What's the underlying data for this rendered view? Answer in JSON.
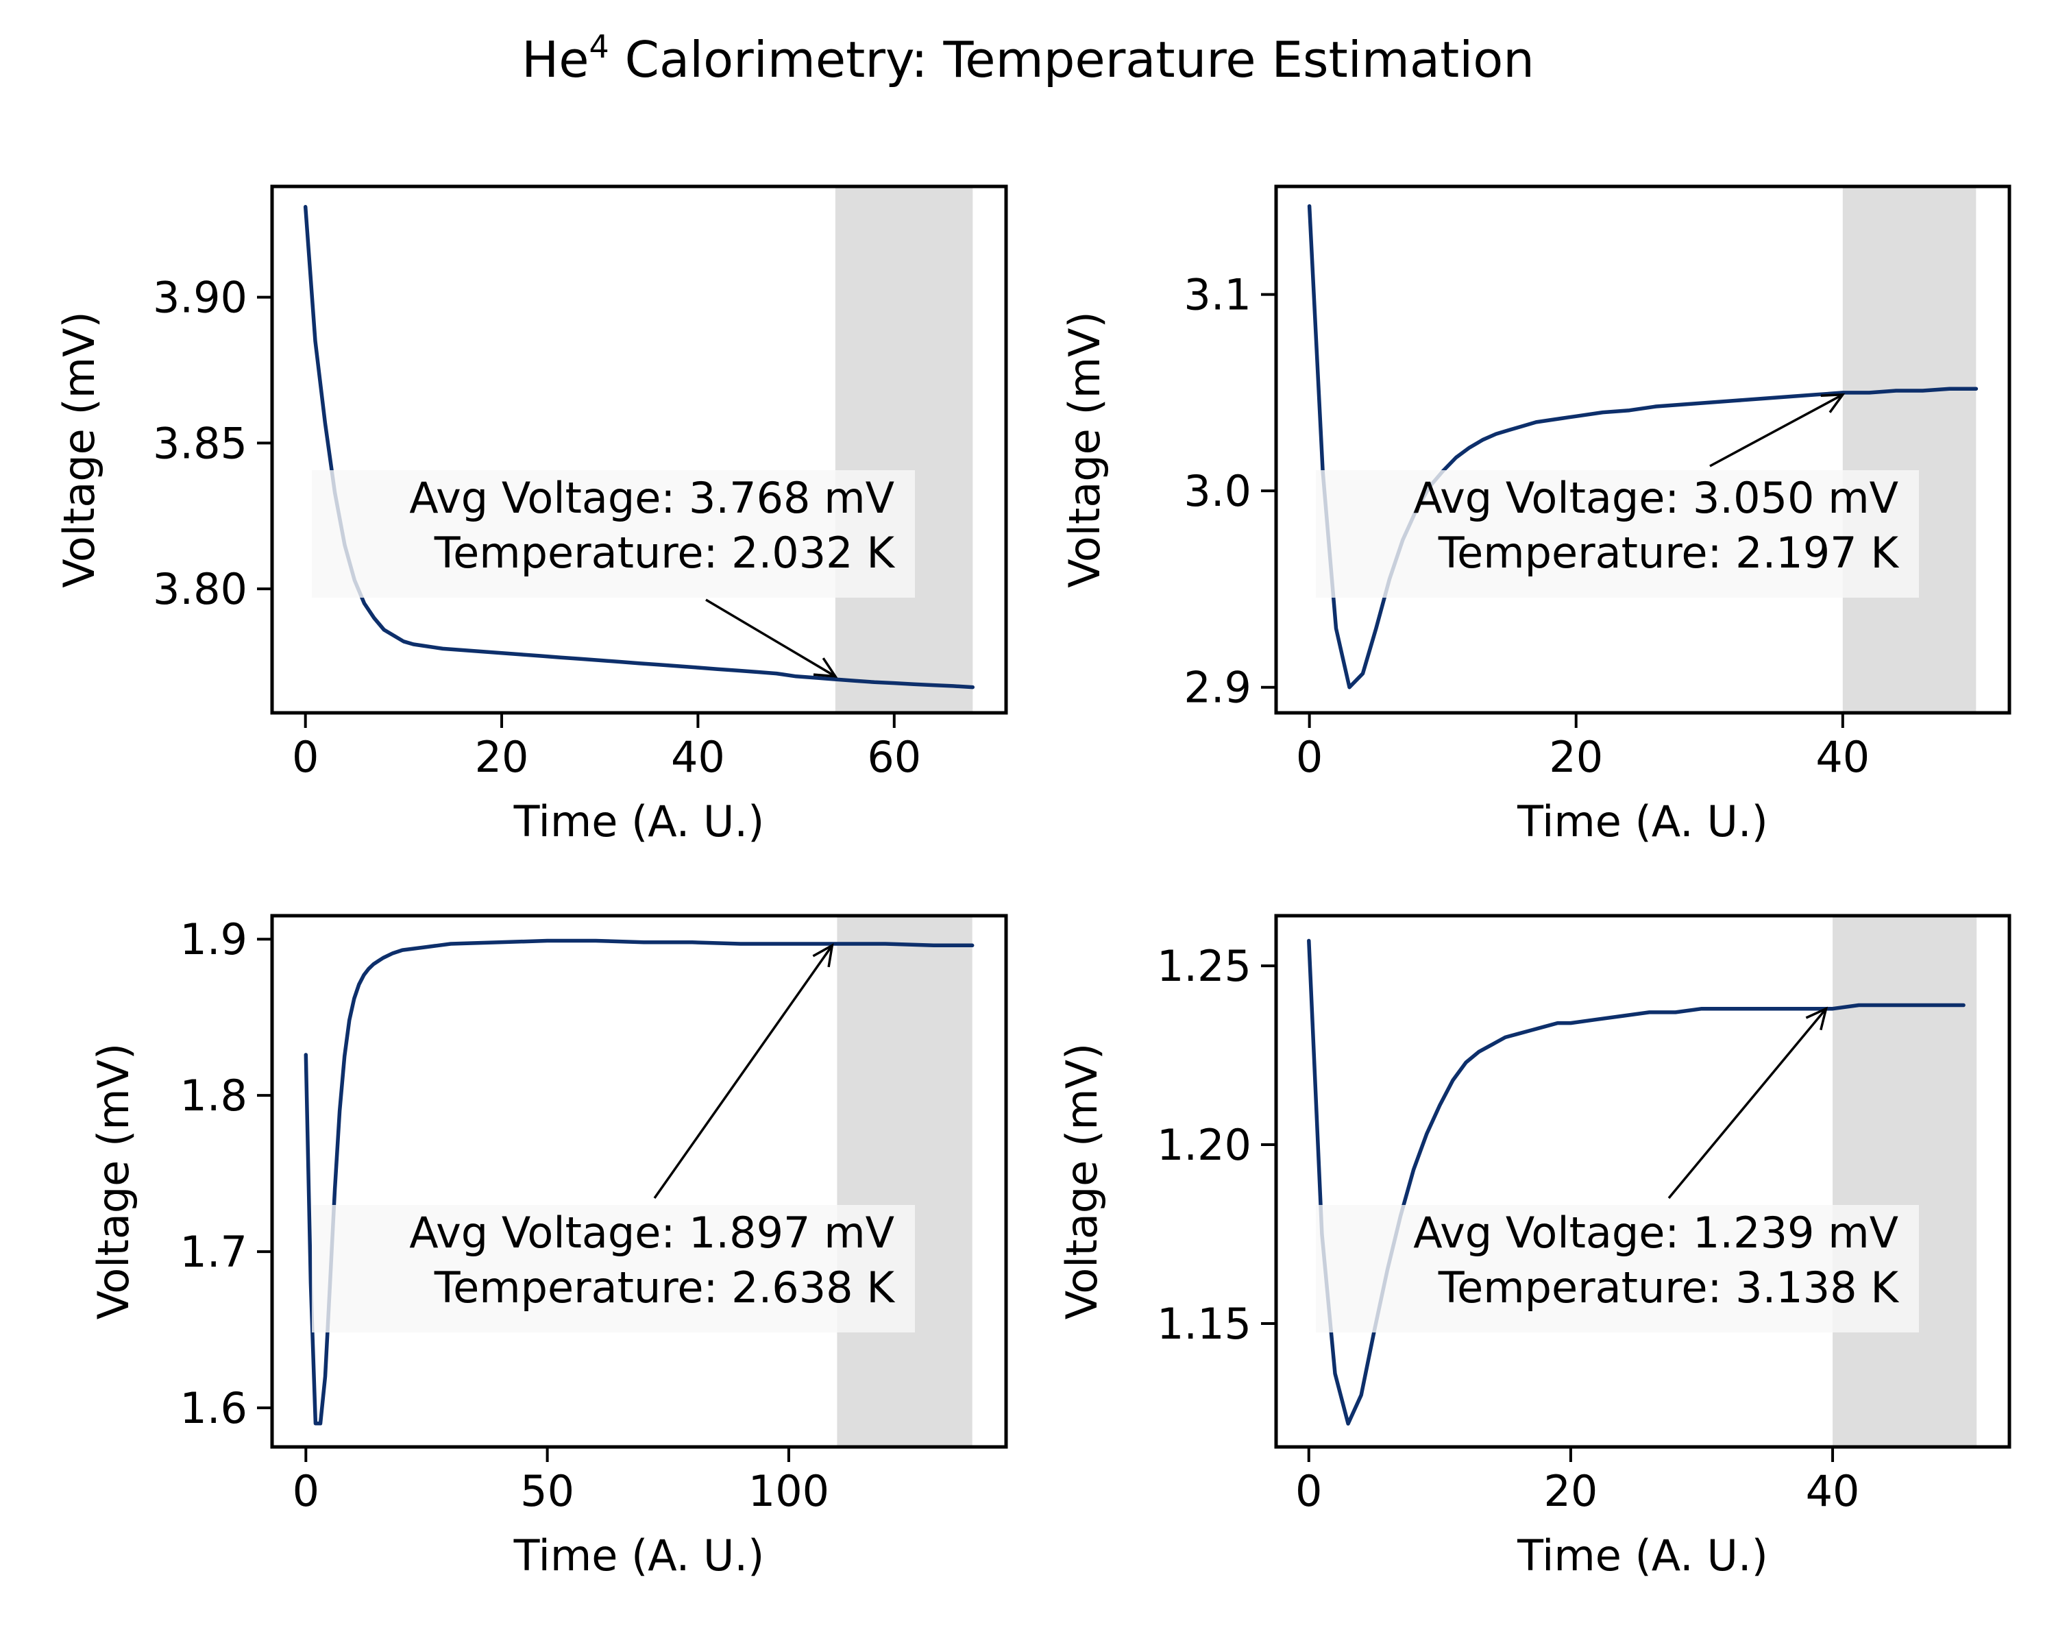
{
  "figure": {
    "title_main": "He",
    "title_sup": "4",
    "title_rest": " Calorimetry: Temperature Estimation"
  },
  "colors": {
    "line": "#0d2f6b",
    "shade": "#dedede",
    "annotation_box": "#f7f7f7"
  },
  "chart_data": [
    {
      "type": "line",
      "xlabel": "Time (A. U.)",
      "ylabel": "Voltage (mV)",
      "xlim": [
        -3.4,
        71.4
      ],
      "ylim": [
        3.7575,
        3.938
      ],
      "xticks": [
        0,
        20,
        40,
        60
      ],
      "yticks": [
        3.8,
        3.85,
        3.9
      ],
      "ytick_labels": [
        "3.80",
        "3.85",
        "3.90"
      ],
      "shaded_x": [
        54,
        68
      ],
      "x": [
        0,
        1,
        2,
        3,
        4,
        5,
        6,
        7,
        8,
        9,
        10,
        11,
        12,
        14,
        16,
        18,
        20,
        22,
        24,
        26,
        28,
        30,
        32,
        34,
        36,
        38,
        40,
        42,
        44,
        46,
        48,
        50,
        52,
        54,
        56,
        58,
        60,
        62,
        64,
        66,
        68
      ],
      "y": [
        3.931,
        3.885,
        3.857,
        3.833,
        3.815,
        3.803,
        3.795,
        3.79,
        3.786,
        3.784,
        3.782,
        3.781,
        3.7805,
        3.7795,
        3.779,
        3.7785,
        3.778,
        3.7775,
        3.777,
        3.7765,
        3.776,
        3.7755,
        3.775,
        3.7745,
        3.774,
        3.7735,
        3.773,
        3.7725,
        3.772,
        3.7715,
        3.771,
        3.77,
        3.7695,
        3.769,
        3.7685,
        3.768,
        3.7677,
        3.7673,
        3.767,
        3.7667,
        3.7663
      ],
      "annotation": {
        "line1": "Avg Voltage: 3.768 mV",
        "line2": "Temperature: 2.032 K",
        "point": [
          54,
          3.77
        ]
      }
    },
    {
      "type": "line",
      "xlabel": "Time (A. U.)",
      "ylabel": "Voltage (mV)",
      "xlim": [
        -2.5,
        52.5
      ],
      "ylim": [
        2.887,
        3.155
      ],
      "xticks": [
        0,
        20,
        40
      ],
      "yticks": [
        2.9,
        3.0,
        3.1
      ],
      "ytick_labels": [
        "2.9",
        "3.0",
        "3.1"
      ],
      "shaded_x": [
        40,
        50
      ],
      "x": [
        0,
        1,
        2,
        3,
        4,
        5,
        6,
        7,
        8,
        9,
        10,
        11,
        12,
        13,
        14,
        15,
        16,
        17,
        18,
        19,
        20,
        22,
        24,
        26,
        28,
        30,
        32,
        34,
        36,
        38,
        40,
        42,
        44,
        46,
        48,
        50
      ],
      "y": [
        3.145,
        3.01,
        2.93,
        2.9,
        2.907,
        2.93,
        2.955,
        2.975,
        2.99,
        3.002,
        3.01,
        3.017,
        3.022,
        3.026,
        3.029,
        3.031,
        3.033,
        3.035,
        3.036,
        3.037,
        3.038,
        3.04,
        3.041,
        3.043,
        3.044,
        3.045,
        3.046,
        3.047,
        3.048,
        3.049,
        3.05,
        3.05,
        3.051,
        3.051,
        3.052,
        3.052
      ],
      "annotation": {
        "line1": "Avg Voltage: 3.050 mV",
        "line2": "Temperature: 2.197 K",
        "point": [
          40,
          3.049
        ]
      }
    },
    {
      "type": "line",
      "xlabel": "Time (A. U.)",
      "ylabel": "Voltage (mV)",
      "xlim": [
        -7,
        145
      ],
      "ylim": [
        1.575,
        1.915
      ],
      "xticks": [
        0,
        50,
        100
      ],
      "yticks": [
        1.6,
        1.7,
        1.8,
        1.9
      ],
      "ytick_labels": [
        "1.6",
        "1.7",
        "1.8",
        "1.9"
      ],
      "shaded_x": [
        110,
        138
      ],
      "x": [
        0,
        1,
        2,
        3,
        4,
        5,
        6,
        7,
        8,
        9,
        10,
        11,
        12,
        13,
        14,
        15,
        16,
        18,
        20,
        25,
        30,
        40,
        50,
        60,
        70,
        80,
        90,
        100,
        110,
        120,
        130,
        138
      ],
      "y": [
        1.826,
        1.68,
        1.59,
        1.59,
        1.62,
        1.68,
        1.74,
        1.79,
        1.825,
        1.848,
        1.862,
        1.871,
        1.877,
        1.881,
        1.884,
        1.886,
        1.888,
        1.891,
        1.893,
        1.895,
        1.897,
        1.898,
        1.899,
        1.899,
        1.898,
        1.898,
        1.897,
        1.897,
        1.897,
        1.897,
        1.896,
        1.896
      ],
      "annotation": {
        "line1": "Avg Voltage: 1.897 mV",
        "line2": "Temperature: 2.638 K",
        "point": [
          109,
          1.896
        ]
      }
    },
    {
      "type": "line",
      "xlabel": "Time (A. U.)",
      "ylabel": "Voltage (mV)",
      "xlim": [
        -2.5,
        53.5
      ],
      "ylim": [
        1.1155,
        1.264
      ],
      "xticks": [
        0,
        20,
        40
      ],
      "yticks": [
        1.15,
        1.2,
        1.25
      ],
      "ytick_labels": [
        "1.15",
        "1.20",
        "1.25"
      ],
      "shaded_x": [
        40,
        51
      ],
      "x": [
        0,
        1,
        2,
        3,
        4,
        5,
        6,
        7,
        8,
        9,
        10,
        11,
        12,
        13,
        14,
        15,
        16,
        17,
        18,
        19,
        20,
        22,
        24,
        26,
        28,
        30,
        32,
        34,
        36,
        38,
        40,
        42,
        44,
        46,
        48,
        50
      ],
      "y": [
        1.257,
        1.175,
        1.136,
        1.122,
        1.13,
        1.148,
        1.165,
        1.18,
        1.193,
        1.203,
        1.211,
        1.218,
        1.223,
        1.226,
        1.228,
        1.23,
        1.231,
        1.232,
        1.233,
        1.234,
        1.234,
        1.235,
        1.236,
        1.237,
        1.237,
        1.238,
        1.238,
        1.238,
        1.238,
        1.238,
        1.238,
        1.239,
        1.239,
        1.239,
        1.239,
        1.239
      ],
      "annotation": {
        "line1": "Avg Voltage: 1.239 mV",
        "line2": "Temperature: 3.138 K",
        "point": [
          39.5,
          1.238
        ]
      }
    }
  ]
}
